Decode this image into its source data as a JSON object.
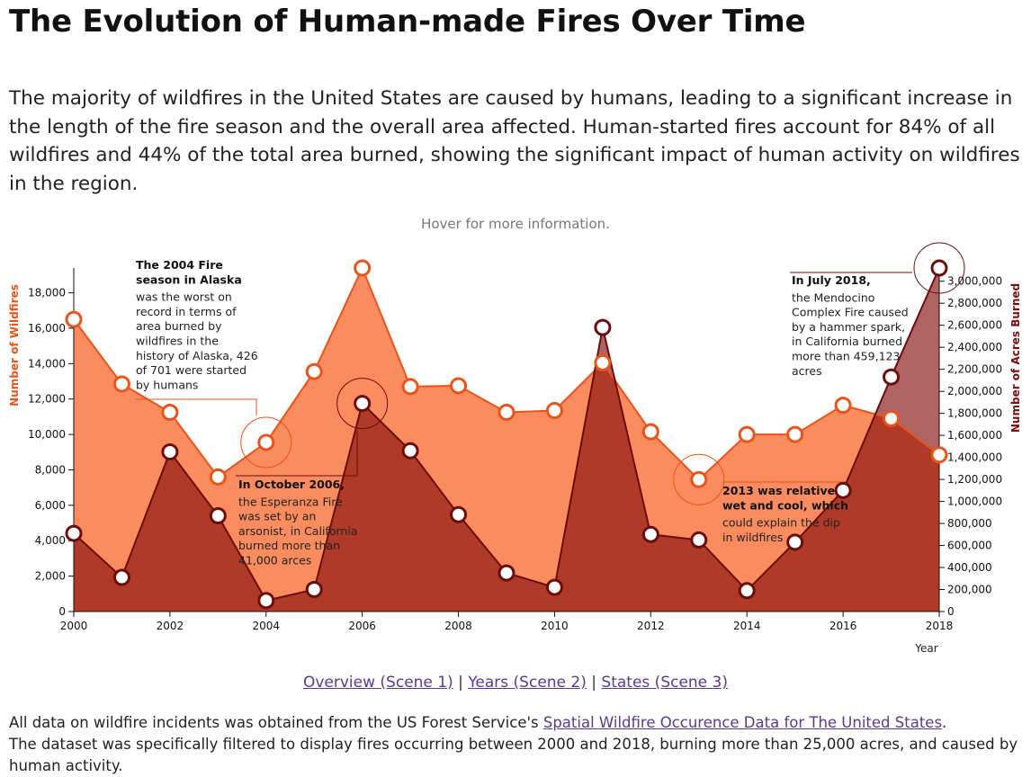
{
  "title": "The Evolution of Human-made Fires Over Time",
  "intro": "The majority of wildfires in the United States are caused by humans, leading to a significant increase in the length of the fire season and the overall area affected. Human-started fires account for 84% of all wildfires and 44% of the total area burned, showing the significant impact of human activity on wildfires in the region.",
  "hint": "Hover for more information.",
  "colors": {
    "fires_fill": "#fb8c5f",
    "fires_line": "#e8541c",
    "acres_fill": "#b03a28",
    "acres_line": "#6b0d0d",
    "acres_overlap": "#ad6462"
  },
  "chart_data": {
    "type": "area",
    "x": [
      2000,
      2001,
      2002,
      2003,
      2004,
      2005,
      2006,
      2007,
      2008,
      2009,
      2010,
      2011,
      2012,
      2013,
      2014,
      2015,
      2016,
      2017,
      2018
    ],
    "xlabel": "Year",
    "xticks": [
      "2000",
      "2002",
      "2004",
      "2006",
      "2008",
      "2010",
      "2012",
      "2014",
      "2016",
      "2018"
    ],
    "xlim": [
      2000,
      2018
    ],
    "series": [
      {
        "name": "Number of Wildfires",
        "axis": "left",
        "values": [
          16500,
          12850,
          11250,
          7600,
          9550,
          13550,
          19400,
          12700,
          12750,
          11250,
          11350,
          14050,
          10150,
          7450,
          10000,
          10000,
          11650,
          10900,
          8850
        ]
      },
      {
        "name": "Number of Acres Burned",
        "axis": "right",
        "values": [
          710000,
          310000,
          1450000,
          870000,
          100000,
          200000,
          1890000,
          1460000,
          880000,
          350000,
          220000,
          2580000,
          700000,
          650000,
          190000,
          630000,
          1100000,
          2130000,
          3120000
        ]
      }
    ],
    "left_axis": {
      "label": "Number of Wildfires",
      "ylim": [
        0,
        19400
      ],
      "ticks": [
        0,
        2000,
        4000,
        6000,
        8000,
        10000,
        12000,
        14000,
        16000,
        18000
      ],
      "tick_labels": [
        "0",
        "2,000",
        "4,000",
        "6,000",
        "8,000",
        "10,000",
        "12,000",
        "14,000",
        "16,000",
        "18,000"
      ]
    },
    "right_axis": {
      "label": "Number of Acres Burned",
      "ylim": [
        0,
        3120000
      ],
      "ticks": [
        0,
        200000,
        400000,
        600000,
        800000,
        1000000,
        1200000,
        1400000,
        1600000,
        1800000,
        2000000,
        2200000,
        2400000,
        2600000,
        2800000,
        3000000
      ],
      "tick_labels": [
        "0",
        "200,000",
        "400,000",
        "600,000",
        "800,000",
        "1,000,000",
        "1,200,000",
        "1,400,000",
        "1,600,000",
        "1,800,000",
        "2,000,000",
        "2,200,000",
        "2,400,000",
        "2,600,000",
        "2,800,000",
        "3,000,000"
      ]
    },
    "annotations": [
      {
        "id": "alaska-2004",
        "year": 2004,
        "series": "Number of Wildfires",
        "title_lines": [
          "The 2004 Fire",
          "season in Alaska"
        ],
        "body_lines": [
          "was the worst on",
          "record in terms of",
          "area burned by",
          "wildfires in the",
          "history of Alaska, 426",
          "of 701 were started",
          "by humans"
        ]
      },
      {
        "id": "esperanza-2006",
        "year": 2006,
        "series": "Number of Acres Burned",
        "title_lines": [
          "In October 2006,"
        ],
        "body_lines": [
          "the Esperanza Fire",
          "was set by an",
          "arsonist, in California",
          "burned more than",
          "41,000 arces"
        ]
      },
      {
        "id": "wet-2013",
        "year": 2013,
        "series": "Number of Wildfires",
        "title_lines": [
          "2013 was relatively",
          "wet and cool, which"
        ],
        "body_lines": [
          "could explain the dip",
          "in wildfires"
        ]
      },
      {
        "id": "mendocino-2018",
        "year": 2018,
        "series": "Number of Acres Burned",
        "title_lines": [
          "In July 2018,"
        ],
        "body_lines": [
          "the Mendocino",
          "Complex Fire caused",
          "by a hammer spark,",
          "in California burned",
          "more than 459,123",
          "acres"
        ]
      }
    ]
  },
  "nav": {
    "links": [
      "Overview (Scene 1)",
      "Years (Scene 2)",
      "States (Scene 3)"
    ],
    "separator": "|"
  },
  "footer": {
    "line1_prefix": "All data on wildfire incidents was obtained from the US Forest Service's ",
    "line1_link": "Spatial Wildfire Occurence Data for The United States",
    "line1_suffix": ".",
    "line2": "The dataset was specifically filtered to display fires occurring between 2000 and 2018, burning more than 25,000 acres, and caused by human activity."
  }
}
